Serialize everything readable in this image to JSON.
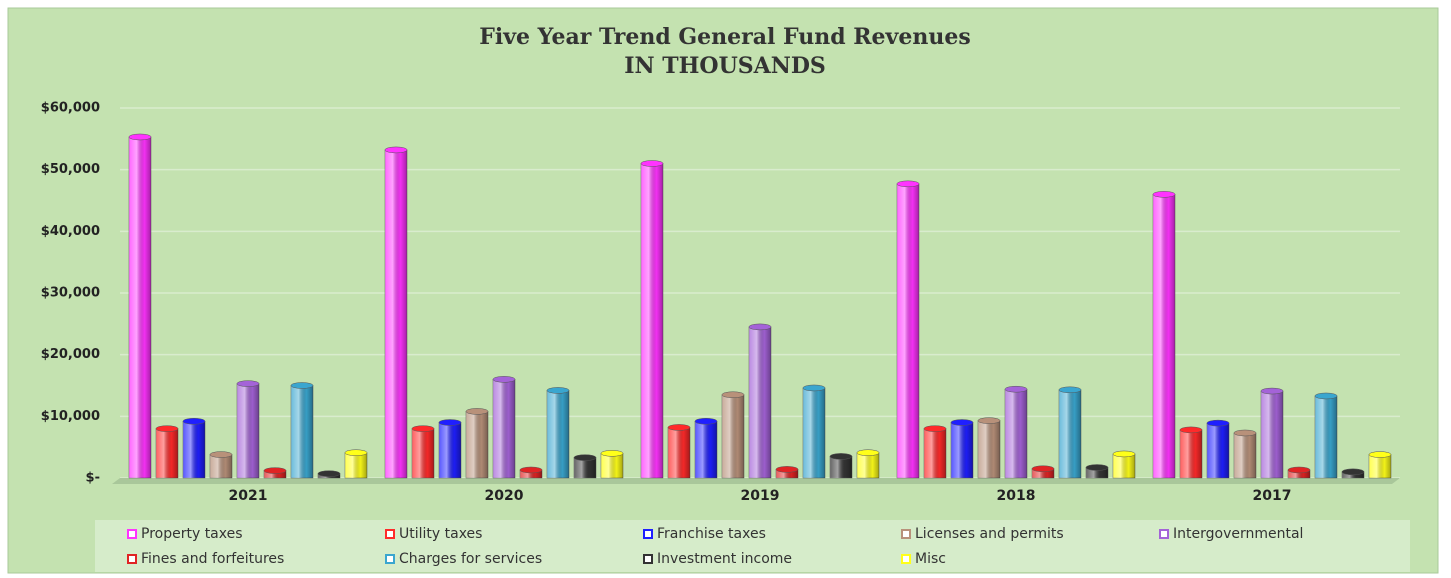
{
  "chart_data": {
    "type": "bar",
    "title": "Five Year Trend General Fund Revenues",
    "subtitle": "IN THOUSANDS",
    "categories": [
      "2021",
      "2020",
      "2019",
      "2018",
      "2017"
    ],
    "series": [
      {
        "name": "Property taxes",
        "color": "#ff33ff",
        "values": [
          55300,
          53200,
          51000,
          47700,
          46000
        ]
      },
      {
        "name": "Utility taxes",
        "color": "#ff2a2a",
        "values": [
          8000,
          8000,
          8200,
          8000,
          7800
        ]
      },
      {
        "name": "Franchise taxes",
        "color": "#1f1fff",
        "values": [
          9200,
          9000,
          9200,
          9000,
          8900
        ]
      },
      {
        "name": "Licenses and permits",
        "color": "#b8917a",
        "values": [
          3800,
          10800,
          13500,
          9300,
          7300
        ]
      },
      {
        "name": "Intergovernmental",
        "color": "#a463d8",
        "values": [
          15300,
          16000,
          24500,
          14400,
          14100
        ]
      },
      {
        "name": "Fines and forfeitures",
        "color": "#e02424",
        "values": [
          1200,
          1300,
          1400,
          1500,
          1300
        ]
      },
      {
        "name": "Charges for services",
        "color": "#3aa6cf",
        "values": [
          15000,
          14200,
          14600,
          14300,
          13300
        ]
      },
      {
        "name": "Investment income",
        "color": "#333333",
        "values": [
          700,
          3300,
          3500,
          1700,
          1000
        ]
      },
      {
        "name": "Misc",
        "color": "#ffff1a",
        "values": [
          4100,
          4000,
          4100,
          3900,
          3800
        ]
      }
    ],
    "ylim": [
      0,
      60000
    ],
    "yticks": [
      {
        "value": 0,
        "label": "$-"
      },
      {
        "value": 10000,
        "label": "$10,000"
      },
      {
        "value": 20000,
        "label": "$20,000"
      },
      {
        "value": 30000,
        "label": "$30,000"
      },
      {
        "value": 40000,
        "label": "$40,000"
      },
      {
        "value": 50000,
        "label": "$50,000"
      },
      {
        "value": 60000,
        "label": "$60,000"
      }
    ],
    "grid": true,
    "legend": "bottom"
  }
}
